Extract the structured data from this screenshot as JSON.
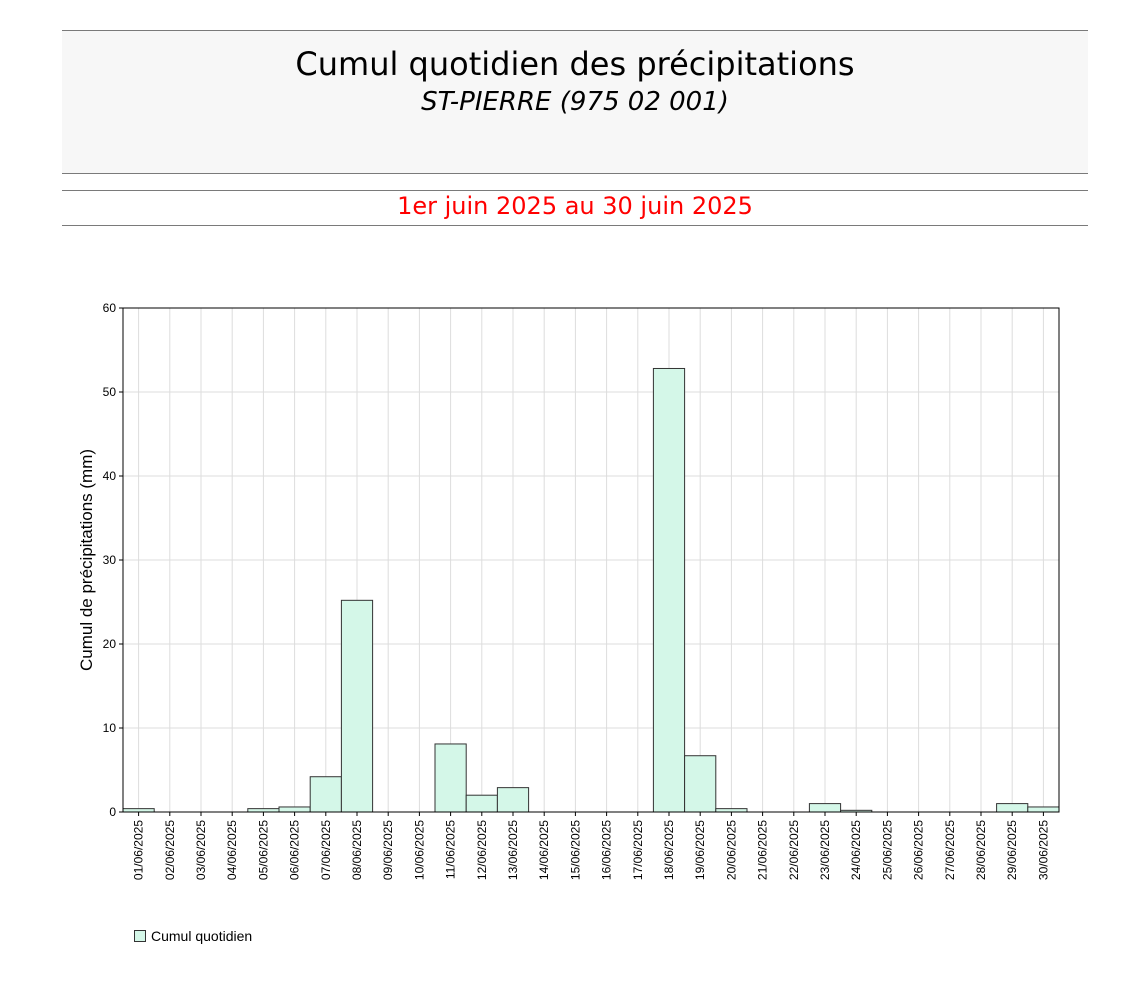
{
  "header": {
    "title": "Cumul quotidien des précipitations",
    "subtitle": "ST-PIERRE (975 02 001)",
    "period": "1er juin 2025 au 30 juin 2025"
  },
  "colors": {
    "bar_fill": "#d4f7e8",
    "bar_stroke": "#333333",
    "period_text": "#ff0000",
    "grid": "#dddddd"
  },
  "chart_data": {
    "type": "bar",
    "ylabel": "Cumul de précipitations (mm)",
    "xlabel": "",
    "ylim": [
      0,
      60
    ],
    "yticks": [
      0,
      10,
      20,
      30,
      40,
      50,
      60
    ],
    "grid": true,
    "legend_position": "bottom-left",
    "categories": [
      "01/06/2025",
      "02/06/2025",
      "03/06/2025",
      "04/06/2025",
      "05/06/2025",
      "06/06/2025",
      "07/06/2025",
      "08/06/2025",
      "09/06/2025",
      "10/06/2025",
      "11/06/2025",
      "12/06/2025",
      "13/06/2025",
      "14/06/2025",
      "15/06/2025",
      "16/06/2025",
      "17/06/2025",
      "18/06/2025",
      "19/06/2025",
      "20/06/2025",
      "21/06/2025",
      "22/06/2025",
      "23/06/2025",
      "24/06/2025",
      "25/06/2025",
      "26/06/2025",
      "27/06/2025",
      "28/06/2025",
      "29/06/2025",
      "30/06/2025"
    ],
    "series": [
      {
        "name": "Cumul quotidien",
        "values": [
          0.4,
          0,
          0,
          0,
          0.4,
          0.6,
          4.2,
          25.2,
          0,
          0,
          8.1,
          2.0,
          2.9,
          0,
          0,
          0,
          0,
          52.8,
          6.7,
          0.4,
          0,
          0,
          1.0,
          0.2,
          0,
          0,
          0,
          0,
          1.0,
          0.6
        ]
      }
    ]
  }
}
